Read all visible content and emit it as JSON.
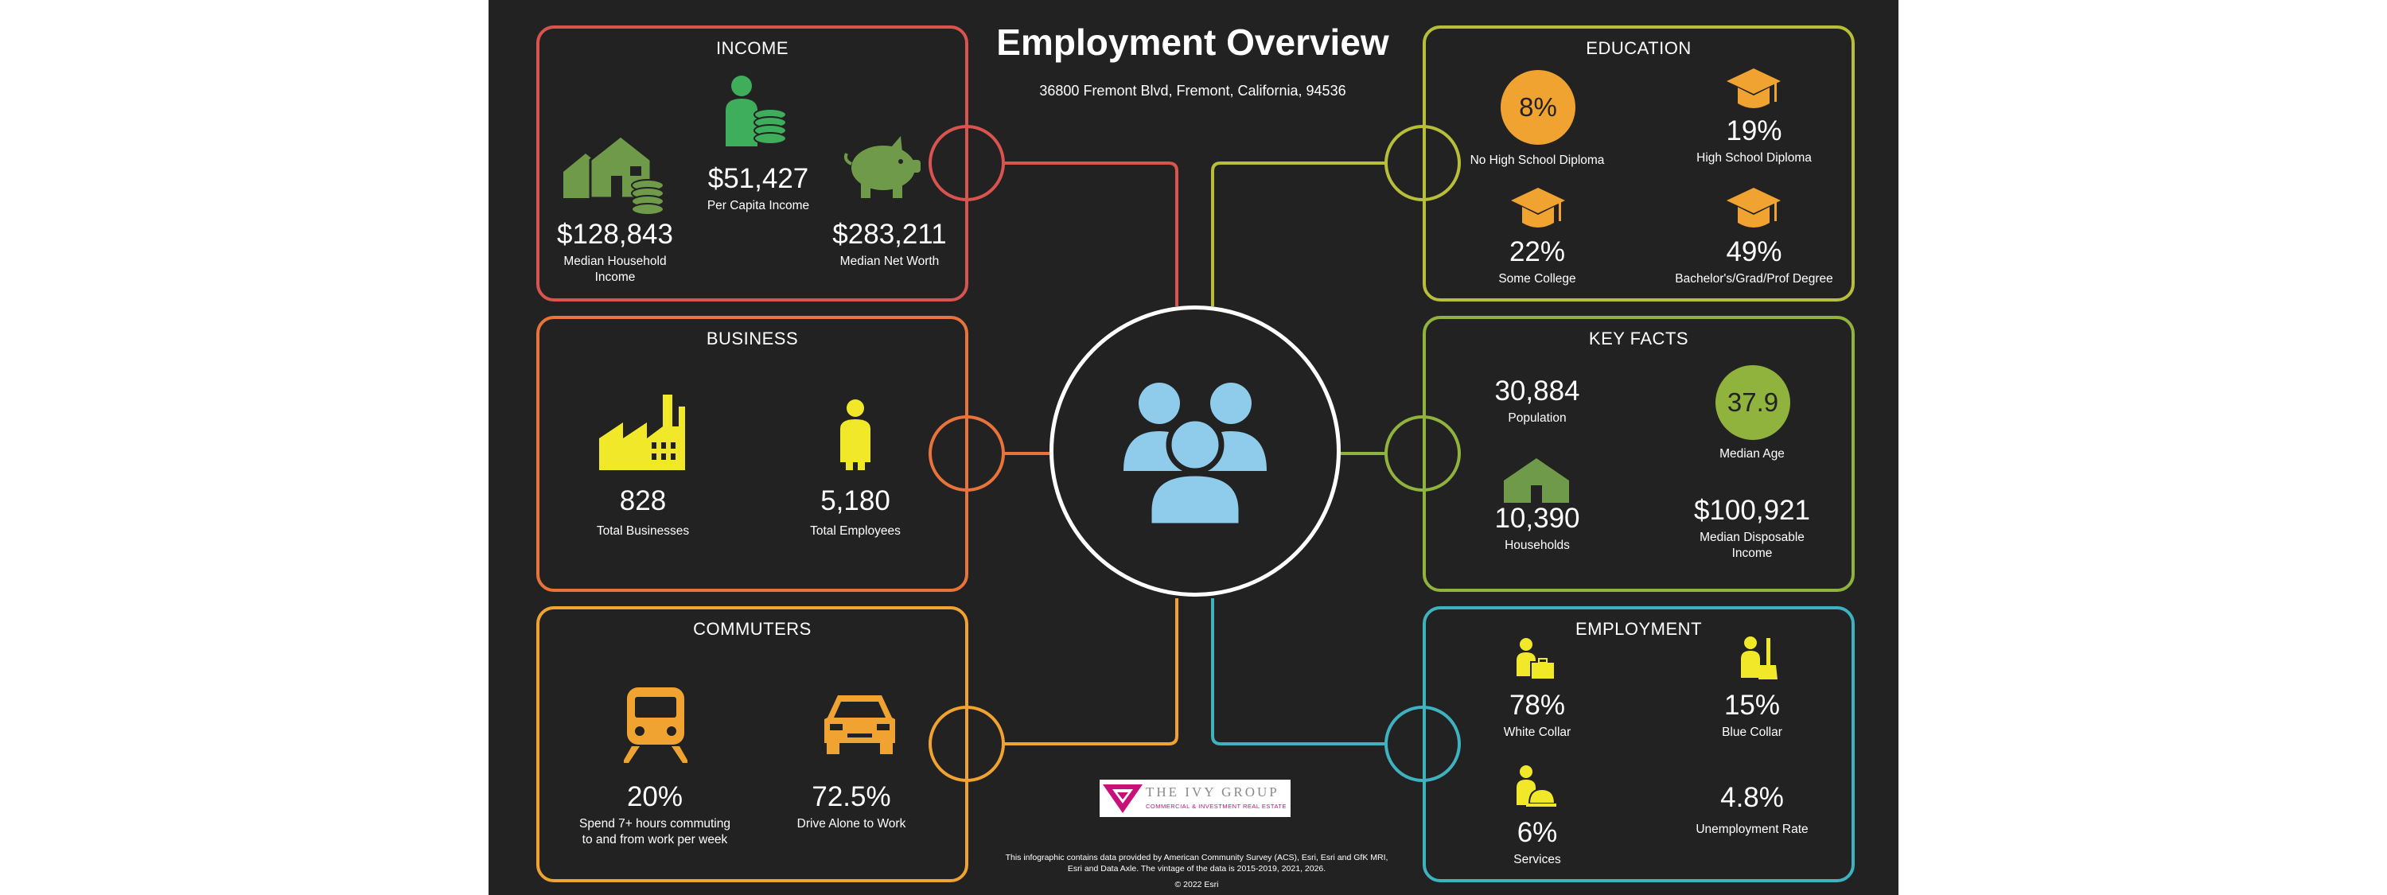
{
  "title": "Employment Overview",
  "address": "36800 Fremont Blvd, Fremont, California, 94536",
  "income": {
    "title": "INCOME",
    "color": "#d9534f",
    "median_household_income": {
      "value": "$128,843",
      "label": "Median Household Income"
    },
    "per_capita_income": {
      "value": "$51,427",
      "label": "Per Capita Income"
    },
    "median_net_worth": {
      "value": "$283,211",
      "label": "Median Net Worth"
    }
  },
  "business": {
    "title": "BUSINESS",
    "color": "#e8743b",
    "total_businesses": {
      "value": "828",
      "label": "Total Businesses"
    },
    "total_employees": {
      "value": "5,180",
      "label": "Total Employees"
    }
  },
  "commuters": {
    "title": "COMMUTERS",
    "color": "#f0a330",
    "long_commute": {
      "value": "20%",
      "label": "Spend 7+ hours commuting to and from work per week"
    },
    "drive_alone": {
      "value": "72.5%",
      "label": "Drive Alone to Work"
    }
  },
  "education": {
    "title": "EDUCATION",
    "color": "#b7bf3a",
    "no_high_school": {
      "value": "8%",
      "label": "No High School Diploma"
    },
    "high_school": {
      "value": "19%",
      "label": "High School Diploma"
    },
    "some_college": {
      "value": "22%",
      "label": "Some College"
    },
    "bachelors_plus": {
      "value": "49%",
      "label": "Bachelor's/Grad/Prof Degree"
    }
  },
  "key_facts": {
    "title": "KEY FACTS",
    "color": "#8fb33d",
    "population": {
      "value": "30,884",
      "label": "Population"
    },
    "median_age": {
      "value": "37.9",
      "label": "Median Age"
    },
    "households": {
      "value": "10,390",
      "label": "Households"
    },
    "median_disposable_income": {
      "value": "$100,921",
      "label": "Median Disposable Income"
    }
  },
  "employment": {
    "title": "EMPLOYMENT",
    "color": "#3fb2c0",
    "white_collar": {
      "value": "78%",
      "label": "White Collar"
    },
    "blue_collar": {
      "value": "15%",
      "label": "Blue Collar"
    },
    "services": {
      "value": "6%",
      "label": "Services"
    },
    "unemployment": {
      "value": "4.8%",
      "label": "Unemployment Rate"
    }
  },
  "logo": {
    "name": "THE IVY GROUP",
    "tagline": "COMMERCIAL & INVESTMENT REAL ESTATE"
  },
  "disclaimer": "This infographic contains data provided by American Community Survey (ACS), Esri, Esri and GfK MRI, Esri and Data Axle. The vintage of the data is 2015-2019, 2021, 2026.",
  "copyright": "© 2022 Esri",
  "colors": {
    "background": "#222222",
    "green_icon": "#6f9a4a",
    "yellow_icon": "#f2e82a",
    "orange_icon": "#f0a330",
    "blue_icon": "#8fcbea",
    "logo_magenta": "#c8107a"
  },
  "icons": {
    "income": [
      "house-coins-icon",
      "person-coins-icon",
      "piggy-bank-icon"
    ],
    "business": [
      "factory-icon",
      "person-icon"
    ],
    "commuters": [
      "train-icon",
      "car-icon"
    ],
    "education": [
      "graduation-cap-icon"
    ],
    "key_facts": [
      "house-icon"
    ],
    "employment": [
      "office-worker-icon",
      "laborer-icon",
      "service-worker-icon"
    ],
    "center": "people-group-icon"
  }
}
